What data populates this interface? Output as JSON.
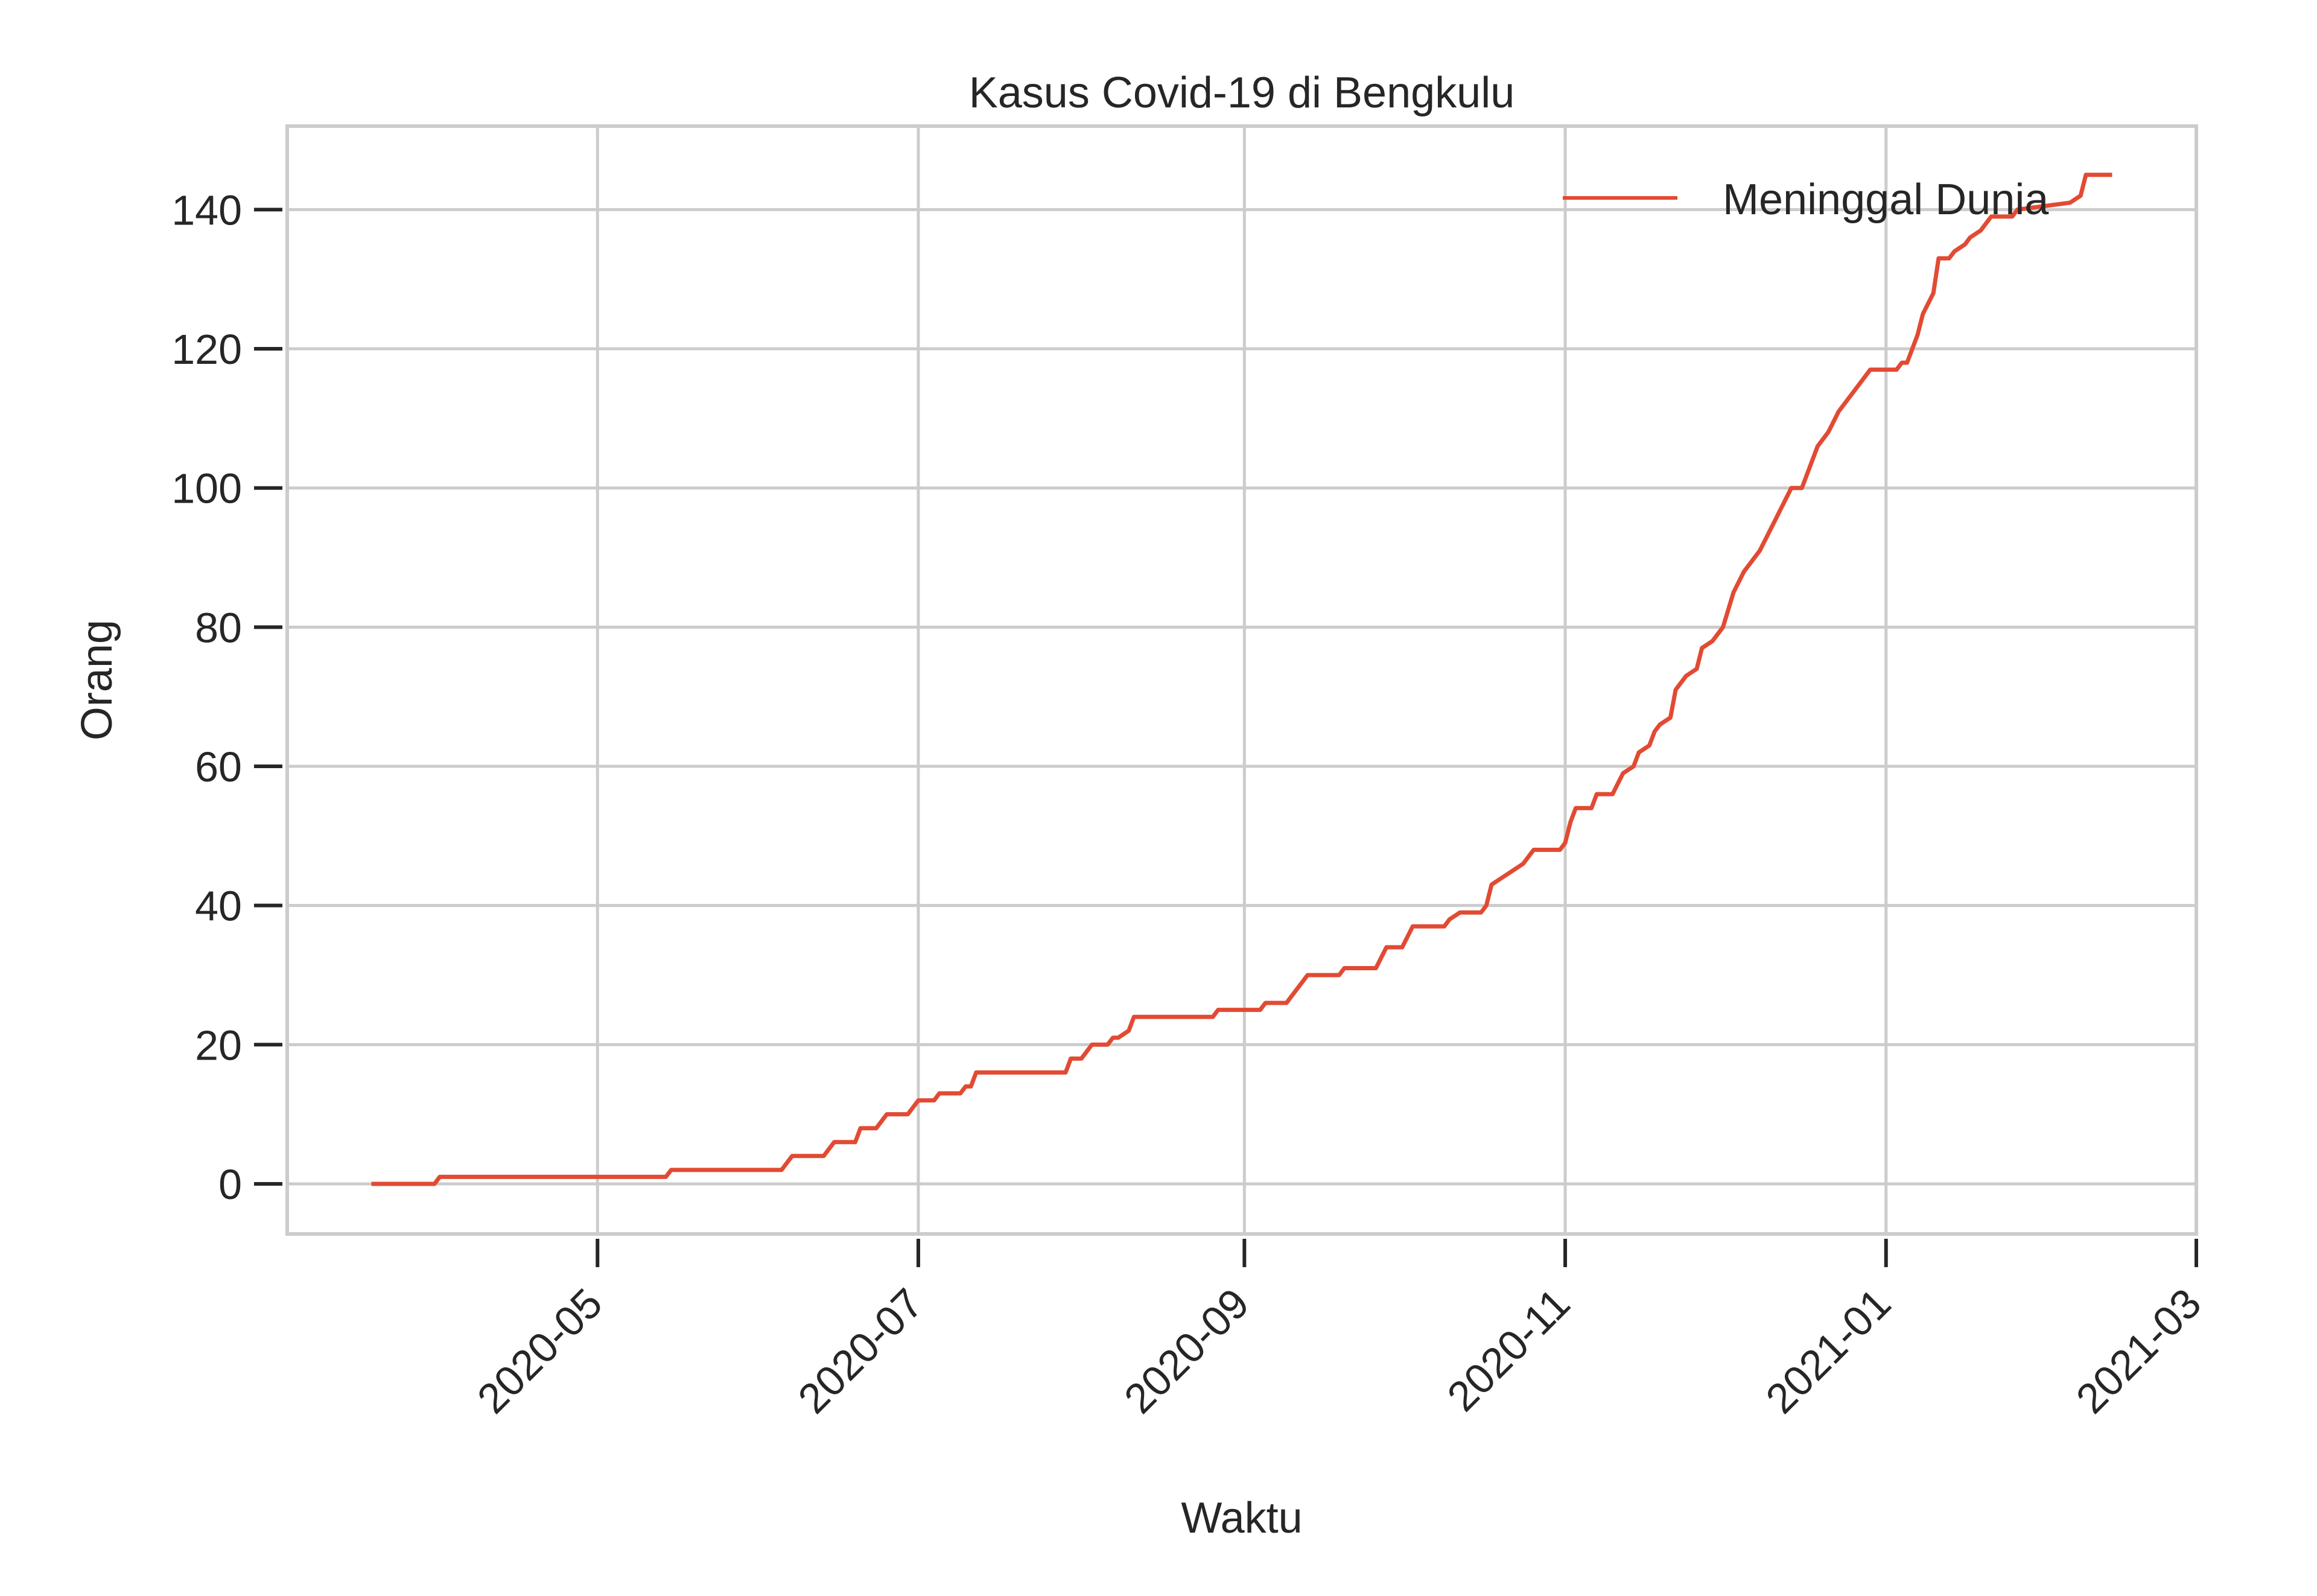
{
  "chart_data": {
    "type": "line",
    "title": "Kasus Covid-19 di Bengkulu",
    "xlabel": "Waktu",
    "ylabel": "Orang",
    "x_type": "date",
    "xlim": [
      "2020-03-03",
      "2021-03-01"
    ],
    "ylim": [
      -7.2,
      152
    ],
    "grid": true,
    "legend_position": "top-right",
    "x_ticks": [
      "2020-05",
      "2020-07",
      "2020-09",
      "2020-11",
      "2021-01",
      "2021-03"
    ],
    "x_tick_dates": [
      "2020-05-01",
      "2020-07-01",
      "2020-09-01",
      "2020-11-01",
      "2021-01-01",
      "2021-03-01"
    ],
    "y_ticks": [
      0,
      20,
      40,
      60,
      80,
      100,
      120,
      140
    ],
    "series": [
      {
        "name": "Meninggal Dunia",
        "color": "#e24a33",
        "points": [
          [
            "2020-03-19",
            0
          ],
          [
            "2020-03-31",
            0
          ],
          [
            "2020-04-01",
            1
          ],
          [
            "2020-05-14",
            1
          ],
          [
            "2020-05-15",
            2
          ],
          [
            "2020-06-05",
            2
          ],
          [
            "2020-06-07",
            4
          ],
          [
            "2020-06-13",
            4
          ],
          [
            "2020-06-15",
            6
          ],
          [
            "2020-06-19",
            6
          ],
          [
            "2020-06-20",
            8
          ],
          [
            "2020-06-23",
            8
          ],
          [
            "2020-06-25",
            10
          ],
          [
            "2020-06-29",
            10
          ],
          [
            "2020-07-01",
            12
          ],
          [
            "2020-07-04",
            12
          ],
          [
            "2020-07-05",
            13
          ],
          [
            "2020-07-09",
            13
          ],
          [
            "2020-07-10",
            14
          ],
          [
            "2020-07-11",
            14
          ],
          [
            "2020-07-12",
            16
          ],
          [
            "2020-07-29",
            16
          ],
          [
            "2020-07-30",
            18
          ],
          [
            "2020-08-01",
            18
          ],
          [
            "2020-08-03",
            20
          ],
          [
            "2020-08-06",
            20
          ],
          [
            "2020-08-07",
            21
          ],
          [
            "2020-08-08",
            21
          ],
          [
            "2020-08-10",
            22
          ],
          [
            "2020-08-11",
            24
          ],
          [
            "2020-08-26",
            24
          ],
          [
            "2020-08-27",
            25
          ],
          [
            "2020-09-04",
            25
          ],
          [
            "2020-09-05",
            26
          ],
          [
            "2020-09-09",
            26
          ],
          [
            "2020-09-11",
            28
          ],
          [
            "2020-09-13",
            30
          ],
          [
            "2020-09-19",
            30
          ],
          [
            "2020-09-20",
            31
          ],
          [
            "2020-09-26",
            31
          ],
          [
            "2020-09-28",
            34
          ],
          [
            "2020-10-01",
            34
          ],
          [
            "2020-10-03",
            37
          ],
          [
            "2020-10-09",
            37
          ],
          [
            "2020-10-10",
            38
          ],
          [
            "2020-10-12",
            39
          ],
          [
            "2020-10-16",
            39
          ],
          [
            "2020-10-17",
            40
          ],
          [
            "2020-10-18",
            43
          ],
          [
            "2020-10-20",
            44
          ],
          [
            "2020-10-22",
            45
          ],
          [
            "2020-10-24",
            46
          ],
          [
            "2020-10-26",
            48
          ],
          [
            "2020-10-31",
            48
          ],
          [
            "2020-11-01",
            49
          ],
          [
            "2020-11-02",
            52
          ],
          [
            "2020-11-03",
            54
          ],
          [
            "2020-11-06",
            54
          ],
          [
            "2020-11-07",
            56
          ],
          [
            "2020-11-10",
            56
          ],
          [
            "2020-11-12",
            59
          ],
          [
            "2020-11-14",
            60
          ],
          [
            "2020-11-15",
            62
          ],
          [
            "2020-11-17",
            63
          ],
          [
            "2020-11-18",
            65
          ],
          [
            "2020-11-19",
            66
          ],
          [
            "2020-11-21",
            67
          ],
          [
            "2020-11-22",
            71
          ],
          [
            "2020-11-24",
            73
          ],
          [
            "2020-11-26",
            74
          ],
          [
            "2020-11-27",
            77
          ],
          [
            "2020-11-29",
            78
          ],
          [
            "2020-12-01",
            80
          ],
          [
            "2020-12-03",
            85
          ],
          [
            "2020-12-05",
            88
          ],
          [
            "2020-12-08",
            91
          ],
          [
            "2020-12-10",
            94
          ],
          [
            "2020-12-12",
            97
          ],
          [
            "2020-12-14",
            100
          ],
          [
            "2020-12-16",
            100
          ],
          [
            "2020-12-17",
            102
          ],
          [
            "2020-12-19",
            106
          ],
          [
            "2020-12-21",
            108
          ],
          [
            "2020-12-23",
            111
          ],
          [
            "2020-12-25",
            113
          ],
          [
            "2020-12-27",
            115
          ],
          [
            "2020-12-29",
            117
          ],
          [
            "2021-01-03",
            117
          ],
          [
            "2021-01-04",
            118
          ],
          [
            "2021-01-05",
            118
          ],
          [
            "2021-01-07",
            122
          ],
          [
            "2021-01-08",
            125
          ],
          [
            "2021-01-10",
            128
          ],
          [
            "2021-01-11",
            133
          ],
          [
            "2021-01-13",
            133
          ],
          [
            "2021-01-14",
            134
          ],
          [
            "2021-01-16",
            135
          ],
          [
            "2021-01-17",
            136
          ],
          [
            "2021-01-19",
            137
          ],
          [
            "2021-01-21",
            139
          ],
          [
            "2021-01-25",
            139
          ],
          [
            "2021-01-26",
            140
          ],
          [
            "2021-02-05",
            141
          ],
          [
            "2021-02-07",
            142
          ],
          [
            "2021-02-08",
            145
          ],
          [
            "2021-02-13",
            145
          ]
        ]
      }
    ]
  }
}
